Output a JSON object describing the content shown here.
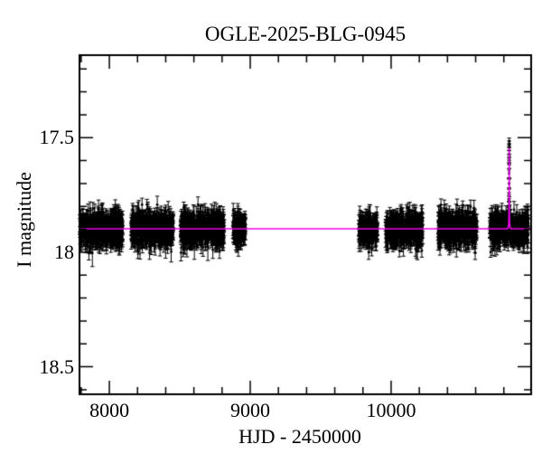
{
  "title": "OGLE-2025-BLG-0945",
  "colors": {
    "background": "#ffffff",
    "frame": "#000000",
    "data_points": "#000000",
    "model_line": "#ee00ee"
  },
  "chart_data": {
    "type": "scatter",
    "title": "OGLE-2025-BLG-0945",
    "xlabel": "HJD - 2450000",
    "ylabel": "I magnitude",
    "x_range": [
      7788,
      10994
    ],
    "y_range_mag": [
      17.14,
      18.62
    ],
    "y_axis_direction": "inverted (brighter magnitudes plotted upward)",
    "grid": false,
    "legend": false,
    "x_major_ticks": [
      {
        "value": 8000,
        "label": "8000"
      },
      {
        "value": 9000,
        "label": "9000"
      },
      {
        "value": 10000,
        "label": "10000"
      }
    ],
    "x_minor_step": 200,
    "y_major_ticks": [
      {
        "value": 17.5,
        "label": "17.5"
      },
      {
        "value": 18.0,
        "label": "18"
      },
      {
        "value": 18.5,
        "label": "18.5"
      }
    ],
    "y_minor_step": 0.1,
    "baseline_magnitude": 17.9,
    "event_peak_hjd": 10838,
    "event_peak_magnitude": 17.52,
    "seasons": [
      {
        "hjd_start": 7790,
        "hjd_end": 8095,
        "n_points": 540,
        "mean_mag": 17.9,
        "scatter_mag": 0.034,
        "mean_err_mag": 0.03
      },
      {
        "hjd_start": 8155,
        "hjd_end": 8455,
        "n_points": 540,
        "mean_mag": 17.9,
        "scatter_mag": 0.034,
        "mean_err_mag": 0.03
      },
      {
        "hjd_start": 8505,
        "hjd_end": 8815,
        "n_points": 540,
        "mean_mag": 17.9,
        "scatter_mag": 0.034,
        "mean_err_mag": 0.03
      },
      {
        "hjd_start": 8878,
        "hjd_end": 8968,
        "n_points": 150,
        "mean_mag": 17.9,
        "scatter_mag": 0.032,
        "mean_err_mag": 0.028
      },
      {
        "hjd_start": 9770,
        "hjd_end": 9905,
        "n_points": 210,
        "mean_mag": 17.9,
        "scatter_mag": 0.033,
        "mean_err_mag": 0.029
      },
      {
        "hjd_start": 9960,
        "hjd_end": 10225,
        "n_points": 430,
        "mean_mag": 17.9,
        "scatter_mag": 0.034,
        "mean_err_mag": 0.03
      },
      {
        "hjd_start": 10333,
        "hjd_end": 10610,
        "n_points": 430,
        "mean_mag": 17.9,
        "scatter_mag": 0.034,
        "mean_err_mag": 0.03
      },
      {
        "hjd_start": 10700,
        "hjd_end": 10975,
        "n_points": 460,
        "mean_mag": 17.9,
        "scatter_mag": 0.034,
        "mean_err_mag": 0.03
      }
    ],
    "event_points": [
      [
        10833.5,
        17.862,
        0.025
      ],
      [
        10834.8,
        17.846,
        0.024
      ],
      [
        10835.6,
        17.83,
        0.024
      ],
      [
        10836.3,
        17.8,
        0.022
      ],
      [
        10836.9,
        17.746,
        0.021
      ],
      [
        10837.15,
        17.7,
        0.02
      ],
      [
        10837.35,
        17.656,
        0.019
      ],
      [
        10837.5,
        17.616,
        0.018
      ],
      [
        10837.62,
        17.59,
        0.017
      ],
      [
        10837.72,
        17.572,
        0.016
      ],
      [
        10837.8,
        17.556,
        0.016
      ],
      [
        10837.88,
        17.541,
        0.015
      ],
      [
        10837.95,
        17.529,
        0.015
      ],
      [
        10838.02,
        17.517,
        0.015
      ],
      [
        10838.3,
        17.6,
        0.018
      ],
      [
        10838.6,
        17.7,
        0.02
      ],
      [
        10839.1,
        17.78,
        0.022
      ],
      [
        10839.9,
        17.836,
        0.024
      ],
      [
        10841.0,
        17.868,
        0.025
      ],
      [
        10842.5,
        17.886,
        0.025
      ]
    ],
    "model_curve": [
      [
        7788,
        17.898
      ],
      [
        10825,
        17.898
      ],
      [
        10830,
        17.894
      ],
      [
        10833,
        17.886
      ],
      [
        10835,
        17.87
      ],
      [
        10836,
        17.848
      ],
      [
        10836.8,
        17.81
      ],
      [
        10837.3,
        17.748
      ],
      [
        10837.7,
        17.648
      ],
      [
        10837.9,
        17.575
      ],
      [
        10838.0,
        17.545
      ],
      [
        10838.1,
        17.575
      ],
      [
        10838.3,
        17.648
      ],
      [
        10838.7,
        17.748
      ],
      [
        10839.2,
        17.81
      ],
      [
        10840,
        17.848
      ],
      [
        10841,
        17.87
      ],
      [
        10843,
        17.886
      ],
      [
        10846,
        17.894
      ],
      [
        10851,
        17.898
      ],
      [
        10994,
        17.898
      ]
    ]
  }
}
